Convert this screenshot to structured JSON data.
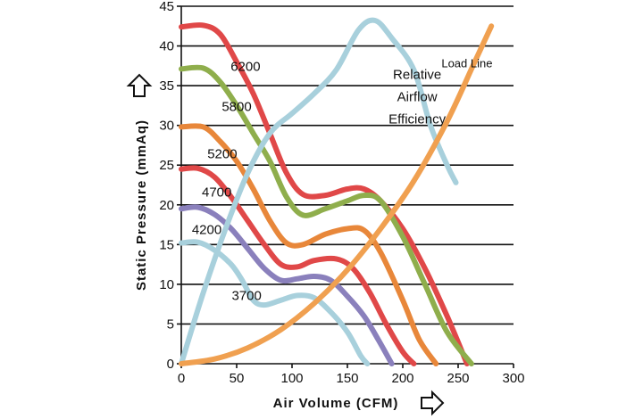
{
  "chart_data": {
    "type": "line",
    "title": "",
    "xlabel": "Air Volume (CFM)",
    "ylabel": "Static Pressure (mmAq)",
    "xlim": [
      0,
      300
    ],
    "ylim": [
      0,
      45
    ],
    "xticks": [
      0,
      50,
      100,
      150,
      200,
      250,
      300
    ],
    "yticks": [
      0,
      5,
      10,
      15,
      20,
      25,
      30,
      35,
      40,
      45
    ],
    "grid": "horizontal",
    "series": [
      {
        "name": "6200",
        "color": "#e04848",
        "points": [
          [
            0,
            42.4
          ],
          [
            20,
            42.6
          ],
          [
            35,
            41.5
          ],
          [
            50,
            38
          ],
          [
            65,
            34
          ],
          [
            80,
            29
          ],
          [
            95,
            24
          ],
          [
            110,
            21.3
          ],
          [
            130,
            21.2
          ],
          [
            150,
            22
          ],
          [
            165,
            22
          ],
          [
            180,
            20.5
          ],
          [
            200,
            17
          ],
          [
            220,
            12
          ],
          [
            240,
            6
          ],
          [
            258,
            0
          ]
        ]
      },
      {
        "name": "5800",
        "color": "#8fae4c",
        "points": [
          [
            0,
            37.1
          ],
          [
            20,
            37.2
          ],
          [
            35,
            35.5
          ],
          [
            50,
            32.5
          ],
          [
            65,
            29
          ],
          [
            80,
            25.5
          ],
          [
            95,
            21
          ],
          [
            110,
            18.7
          ],
          [
            130,
            19.5
          ],
          [
            150,
            20.5
          ],
          [
            165,
            21.2
          ],
          [
            180,
            20.5
          ],
          [
            200,
            16
          ],
          [
            220,
            10
          ],
          [
            240,
            4
          ],
          [
            262,
            0
          ]
        ]
      },
      {
        "name": "5200",
        "color": "#e8873a",
        "points": [
          [
            0,
            29.8
          ],
          [
            20,
            29.8
          ],
          [
            35,
            28
          ],
          [
            50,
            25.5
          ],
          [
            65,
            22
          ],
          [
            80,
            18
          ],
          [
            95,
            15.2
          ],
          [
            110,
            15
          ],
          [
            130,
            16.3
          ],
          [
            150,
            17
          ],
          [
            165,
            16.8
          ],
          [
            180,
            14
          ],
          [
            200,
            8
          ],
          [
            215,
            3
          ],
          [
            230,
            0
          ]
        ]
      },
      {
        "name": "4700",
        "color": "#e04848",
        "points": [
          [
            0,
            24.5
          ],
          [
            15,
            24.6
          ],
          [
            30,
            23.5
          ],
          [
            45,
            21
          ],
          [
            60,
            18
          ],
          [
            75,
            15
          ],
          [
            90,
            12.5
          ],
          [
            105,
            12.2
          ],
          [
            120,
            13
          ],
          [
            140,
            13.2
          ],
          [
            155,
            12
          ],
          [
            170,
            9
          ],
          [
            185,
            5
          ],
          [
            200,
            1.5
          ],
          [
            210,
            0
          ]
        ]
      },
      {
        "name": "4200",
        "color": "#8a80bc",
        "points": [
          [
            0,
            19.5
          ],
          [
            15,
            19.7
          ],
          [
            30,
            18.8
          ],
          [
            45,
            17
          ],
          [
            60,
            14.5
          ],
          [
            75,
            12
          ],
          [
            90,
            10.5
          ],
          [
            105,
            10.7
          ],
          [
            120,
            11
          ],
          [
            135,
            10.5
          ],
          [
            150,
            8.5
          ],
          [
            165,
            6
          ],
          [
            178,
            3
          ],
          [
            190,
            0
          ]
        ]
      },
      {
        "name": "3700",
        "color": "#a8d0dc",
        "points": [
          [
            0,
            15.2
          ],
          [
            15,
            15.3
          ],
          [
            30,
            14.3
          ],
          [
            45,
            12.5
          ],
          [
            55,
            10.5
          ],
          [
            65,
            8
          ],
          [
            75,
            7.4
          ],
          [
            90,
            8
          ],
          [
            105,
            8.6
          ],
          [
            120,
            8.3
          ],
          [
            135,
            6.5
          ],
          [
            150,
            4
          ],
          [
            162,
            1
          ],
          [
            168,
            0
          ]
        ]
      },
      {
        "name": "Relative Airflow Efficiency",
        "color": "#a8d0dc",
        "points": [
          [
            0,
            0
          ],
          [
            20,
            9
          ],
          [
            40,
            17
          ],
          [
            60,
            24
          ],
          [
            80,
            29
          ],
          [
            100,
            31.5
          ],
          [
            120,
            34
          ],
          [
            140,
            37
          ],
          [
            160,
            42
          ],
          [
            175,
            43.2
          ],
          [
            190,
            41
          ],
          [
            210,
            37
          ],
          [
            225,
            30
          ],
          [
            240,
            25
          ],
          [
            248,
            22.8
          ]
        ]
      },
      {
        "name": "Load Line",
        "color": "#f0a050",
        "points": [
          [
            0,
            0
          ],
          [
            30,
            0.6
          ],
          [
            60,
            2
          ],
          [
            90,
            4.3
          ],
          [
            120,
            7.6
          ],
          [
            150,
            11.8
          ],
          [
            180,
            17
          ],
          [
            210,
            23
          ],
          [
            240,
            30.5
          ],
          [
            265,
            38
          ],
          [
            280,
            42.5
          ]
        ]
      }
    ],
    "annotations": [
      {
        "text": "6200",
        "x": 58,
        "y": 37.4
      },
      {
        "text": "5800",
        "x": 50,
        "y": 32.4
      },
      {
        "text": "5200",
        "x": 37,
        "y": 26.4
      },
      {
        "text": "4700",
        "x": 32,
        "y": 21.6
      },
      {
        "text": "4200",
        "x": 23,
        "y": 16.9
      },
      {
        "text": "3700",
        "x": 59,
        "y": 8.6
      },
      {
        "text": "Relative",
        "x": 213,
        "y": 36.4
      },
      {
        "text": "Airflow",
        "x": 213,
        "y": 33.6
      },
      {
        "text": "Efficiency",
        "x": 213,
        "y": 30.8
      },
      {
        "text": "Load Line",
        "x": 258,
        "y": 37.9
      }
    ]
  }
}
